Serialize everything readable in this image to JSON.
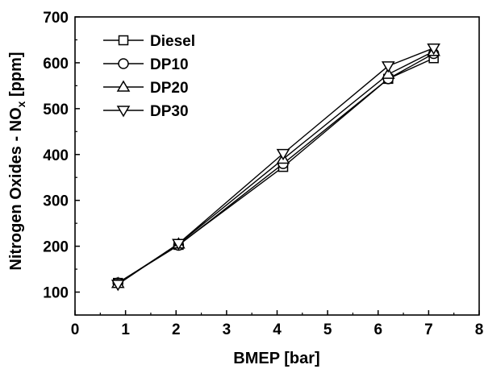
{
  "chart_data": {
    "type": "line",
    "title": "",
    "xlabel": "BMEP [bar]",
    "ylabel": {
      "main": "Nitrogen Oxides - NO",
      "subscript": "x",
      "suffix": " [ppm]"
    },
    "xlim": [
      0,
      8
    ],
    "ylim": [
      50,
      700
    ],
    "x_ticks": [
      "0",
      "1",
      "2",
      "3",
      "4",
      "5",
      "6",
      "7",
      "8"
    ],
    "y_ticks": [
      "100",
      "200",
      "300",
      "400",
      "500",
      "600",
      "700"
    ],
    "grid": false,
    "legend_position": "top-left",
    "series": [
      {
        "name": "Diesel",
        "marker": "square",
        "x": [
          0.85,
          2.05,
          4.12,
          6.2,
          7.1
        ],
        "y": [
          120,
          203,
          373,
          565,
          610
        ]
      },
      {
        "name": "DP10",
        "marker": "circle",
        "x": [
          0.85,
          2.05,
          4.12,
          6.2,
          7.1
        ],
        "y": [
          120,
          202,
          380,
          565,
          620
        ]
      },
      {
        "name": "DP20",
        "marker": "triangle-up",
        "x": [
          0.85,
          2.05,
          4.12,
          6.2,
          7.1
        ],
        "y": [
          119,
          205,
          390,
          575,
          625
        ]
      },
      {
        "name": "DP30",
        "marker": "triangle-down",
        "x": [
          0.85,
          2.05,
          4.12,
          6.2,
          7.1
        ],
        "y": [
          117,
          206,
          402,
          593,
          632
        ]
      }
    ]
  }
}
